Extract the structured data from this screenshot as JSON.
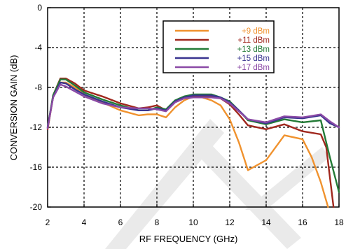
{
  "chart_data": {
    "type": "line",
    "xlabel": "RF FREQUENCY (GHz)",
    "ylabel": "CONVERSION GAIN (dB)",
    "xlim": [
      2,
      18
    ],
    "ylim": [
      -20,
      0
    ],
    "x_ticks": [
      2,
      4,
      6,
      8,
      10,
      12,
      14,
      16,
      18
    ],
    "y_ticks": [
      0,
      -4,
      -8,
      -12,
      -16,
      -20
    ],
    "grid": "dashed",
    "legend_position": "top-right",
    "series": [
      {
        "name": "+9 dBm",
        "color": "#f0922e",
        "points": [
          [
            2,
            -12.2
          ],
          [
            2.3,
            -9.0
          ],
          [
            2.7,
            -7.5
          ],
          [
            3,
            -7.5
          ],
          [
            3.5,
            -8.0
          ],
          [
            4,
            -8.7
          ],
          [
            5,
            -9.5
          ],
          [
            6,
            -10.3
          ],
          [
            7,
            -10.8
          ],
          [
            7.5,
            -10.7
          ],
          [
            8,
            -10.7
          ],
          [
            8.5,
            -11.0
          ],
          [
            9,
            -10.0
          ],
          [
            9.5,
            -9.3
          ],
          [
            10,
            -8.9
          ],
          [
            10.5,
            -9.0
          ],
          [
            11,
            -9.3
          ],
          [
            11.5,
            -9.8
          ],
          [
            12,
            -11.2
          ],
          [
            12.5,
            -13.5
          ],
          [
            13,
            -16.3
          ],
          [
            14,
            -15.3
          ],
          [
            15,
            -12.8
          ],
          [
            16,
            -13.2
          ],
          [
            16.5,
            -15.0
          ],
          [
            17,
            -17.5
          ],
          [
            17.4,
            -20.0
          ]
        ]
      },
      {
        "name": "+11 dBm",
        "color": "#a0271d",
        "points": [
          [
            2,
            -12.2
          ],
          [
            2.3,
            -8.8
          ],
          [
            2.7,
            -7.1
          ],
          [
            3,
            -7.1
          ],
          [
            3.5,
            -7.6
          ],
          [
            4,
            -8.3
          ],
          [
            5,
            -8.9
          ],
          [
            6,
            -9.6
          ],
          [
            7,
            -10.1
          ],
          [
            7.5,
            -10.0
          ],
          [
            8,
            -9.8
          ],
          [
            8.5,
            -10.3
          ],
          [
            9,
            -9.4
          ],
          [
            9.5,
            -9.0
          ],
          [
            10,
            -8.9
          ],
          [
            11,
            -8.9
          ],
          [
            11.5,
            -9.1
          ],
          [
            12,
            -9.7
          ],
          [
            12.5,
            -10.7
          ],
          [
            13,
            -11.8
          ],
          [
            14,
            -12.2
          ],
          [
            15,
            -11.7
          ],
          [
            16,
            -12.4
          ],
          [
            17,
            -12.7
          ],
          [
            17.3,
            -14.0
          ],
          [
            17.7,
            -20.0
          ]
        ]
      },
      {
        "name": "+13 dBm",
        "color": "#237a36",
        "points": [
          [
            2,
            -12.0
          ],
          [
            2.3,
            -8.8
          ],
          [
            2.7,
            -7.2
          ],
          [
            3,
            -7.2
          ],
          [
            3.5,
            -7.8
          ],
          [
            4,
            -8.5
          ],
          [
            5,
            -9.2
          ],
          [
            6,
            -9.8
          ],
          [
            7,
            -10.3
          ],
          [
            7.5,
            -10.3
          ],
          [
            8,
            -10.0
          ],
          [
            8.5,
            -10.2
          ],
          [
            9,
            -9.3
          ],
          [
            9.5,
            -8.9
          ],
          [
            10,
            -8.7
          ],
          [
            11,
            -8.7
          ],
          [
            11.5,
            -9.0
          ],
          [
            12,
            -9.4
          ],
          [
            12.5,
            -10.3
          ],
          [
            13,
            -11.3
          ],
          [
            14,
            -11.7
          ],
          [
            15,
            -11.2
          ],
          [
            16,
            -11.5
          ],
          [
            17,
            -11.3
          ],
          [
            17.5,
            -15.0
          ],
          [
            18,
            -18.5
          ]
        ]
      },
      {
        "name": "+15 dBm",
        "color": "#39348f",
        "points": [
          [
            2,
            -12.0
          ],
          [
            2.3,
            -9.0
          ],
          [
            2.7,
            -7.5
          ],
          [
            3,
            -7.6
          ],
          [
            3.5,
            -8.2
          ],
          [
            4,
            -8.7
          ],
          [
            5,
            -9.4
          ],
          [
            6,
            -10.0
          ],
          [
            7,
            -10.3
          ],
          [
            7.5,
            -10.3
          ],
          [
            8,
            -10.1
          ],
          [
            8.5,
            -10.3
          ],
          [
            9,
            -9.4
          ],
          [
            9.5,
            -9.0
          ],
          [
            10,
            -8.8
          ],
          [
            11,
            -8.8
          ],
          [
            11.5,
            -9.0
          ],
          [
            12,
            -9.5
          ],
          [
            12.5,
            -10.3
          ],
          [
            13,
            -11.2
          ],
          [
            14,
            -11.6
          ],
          [
            15,
            -11.0
          ],
          [
            16,
            -11.1
          ],
          [
            17,
            -10.8
          ],
          [
            17.5,
            -11.6
          ],
          [
            18,
            -12.0
          ]
        ]
      },
      {
        "name": "+17 dBm",
        "color": "#8b4aa6",
        "points": [
          [
            2,
            -12.1
          ],
          [
            2.3,
            -9.0
          ],
          [
            2.7,
            -7.7
          ],
          [
            3,
            -7.9
          ],
          [
            3.5,
            -8.4
          ],
          [
            4,
            -8.9
          ],
          [
            5,
            -9.6
          ],
          [
            6,
            -10.0
          ],
          [
            7,
            -10.1
          ],
          [
            7.5,
            -10.1
          ],
          [
            8,
            -10.2
          ],
          [
            8.5,
            -10.4
          ],
          [
            9,
            -9.5
          ],
          [
            9.5,
            -9.1
          ],
          [
            10,
            -9.0
          ],
          [
            11,
            -9.0
          ],
          [
            11.5,
            -9.1
          ],
          [
            12,
            -9.6
          ],
          [
            12.5,
            -10.4
          ],
          [
            13,
            -11.2
          ],
          [
            14,
            -11.5
          ],
          [
            15,
            -10.9
          ],
          [
            16,
            -11.0
          ],
          [
            17,
            -10.7
          ],
          [
            17.5,
            -11.4
          ],
          [
            18,
            -12.0
          ]
        ]
      }
    ]
  }
}
